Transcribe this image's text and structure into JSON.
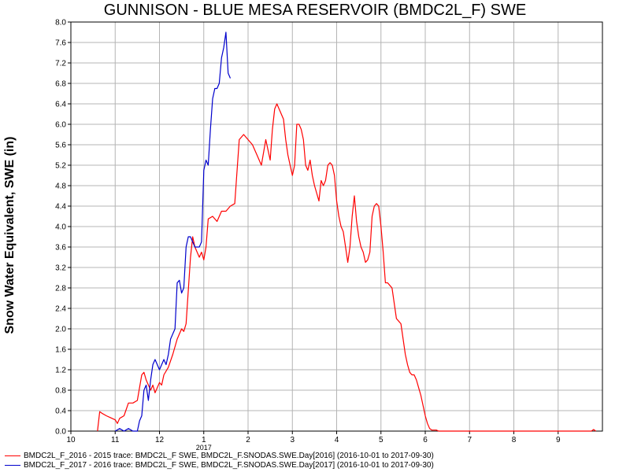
{
  "chart_data": {
    "type": "line",
    "title": "GUNNISON - BLUE MESA RESERVOIR (BMDC2L_F) SWE",
    "ylabel": "Snow Water Equivalent, SWE (in)",
    "xlabel": "",
    "ylim": [
      0,
      8
    ],
    "y_ticks": [
      "0.0",
      "0.4",
      "0.8",
      "1.2",
      "1.6",
      "2.0",
      "2.4",
      "2.8",
      "3.2",
      "3.6",
      "4.0",
      "4.4",
      "4.8",
      "5.2",
      "5.6",
      "6.0",
      "6.4",
      "6.8",
      "7.2",
      "7.6",
      "8.0"
    ],
    "x_ticks": [
      {
        "label": "10",
        "month": 0
      },
      {
        "label": "11",
        "month": 1
      },
      {
        "label": "12",
        "month": 2
      },
      {
        "label": "1",
        "month": 3
      },
      {
        "label": "2",
        "month": 4
      },
      {
        "label": "3",
        "month": 5
      },
      {
        "label": "4",
        "month": 6
      },
      {
        "label": "5",
        "month": 7
      },
      {
        "label": "6",
        "month": 8
      },
      {
        "label": "7",
        "month": 9
      },
      {
        "label": "8",
        "month": 10
      },
      {
        "label": "9",
        "month": 11
      }
    ],
    "year_label": "2017",
    "grid": true,
    "series": [
      {
        "name": "BMDC2L_F_2016 - 2015 trace: BMDC2L_F SWE, BMDC2L_F.SNODAS.SWE.Day[2016] (2016-10-01 to 2017-09-30)",
        "color": "#ff0000",
        "x": [
          0.6,
          0.65,
          0.7,
          0.8,
          0.9,
          1.0,
          1.05,
          1.1,
          1.2,
          1.3,
          1.4,
          1.5,
          1.6,
          1.65,
          1.7,
          1.8,
          1.85,
          1.9,
          2.0,
          2.05,
          2.1,
          2.2,
          2.3,
          2.4,
          2.5,
          2.55,
          2.6,
          2.7,
          2.75,
          2.8,
          2.9,
          2.95,
          3.0,
          3.05,
          3.1,
          3.2,
          3.3,
          3.4,
          3.5,
          3.6,
          3.7,
          3.8,
          3.9,
          4.0,
          4.1,
          4.2,
          4.3,
          4.4,
          4.5,
          4.55,
          4.6,
          4.65,
          4.7,
          4.8,
          4.85,
          4.9,
          4.95,
          5.0,
          5.05,
          5.1,
          5.15,
          5.2,
          5.25,
          5.3,
          5.35,
          5.4,
          5.45,
          5.5,
          5.6,
          5.65,
          5.7,
          5.75,
          5.8,
          5.85,
          5.9,
          5.95,
          6.0,
          6.05,
          6.1,
          6.15,
          6.2,
          6.25,
          6.3,
          6.35,
          6.4,
          6.45,
          6.5,
          6.55,
          6.6,
          6.65,
          6.7,
          6.75,
          6.8,
          6.85,
          6.9,
          6.95,
          7.0,
          7.05,
          7.1,
          7.15,
          7.2,
          7.25,
          7.3,
          7.35,
          7.4,
          7.45,
          7.5,
          7.55,
          7.6,
          7.65,
          7.7,
          7.75,
          7.8,
          7.85,
          7.9,
          7.95,
          8.0,
          8.05,
          8.1,
          8.15,
          8.2,
          8.25,
          8.3,
          8.35,
          8.4,
          8.45,
          8.5,
          8.55,
          8.6,
          8.7,
          8.8,
          8.9,
          9.0,
          9.5,
          10.0,
          10.5,
          11.0,
          11.5,
          11.75,
          11.8,
          11.85
        ],
        "y": [
          0.0,
          0.38,
          0.35,
          0.3,
          0.26,
          0.22,
          0.15,
          0.25,
          0.3,
          0.55,
          0.55,
          0.6,
          1.1,
          1.15,
          1.0,
          0.8,
          0.9,
          0.75,
          0.95,
          0.9,
          1.1,
          1.25,
          1.5,
          1.8,
          2.0,
          1.95,
          2.1,
          3.4,
          3.8,
          3.6,
          3.4,
          3.5,
          3.35,
          3.6,
          4.15,
          4.2,
          4.1,
          4.3,
          4.3,
          4.4,
          4.45,
          5.7,
          5.8,
          5.7,
          5.6,
          5.4,
          5.2,
          5.7,
          5.3,
          5.9,
          6.3,
          6.4,
          6.3,
          6.1,
          5.7,
          5.4,
          5.2,
          5.0,
          5.2,
          6.0,
          6.0,
          5.9,
          5.7,
          5.2,
          5.1,
          5.3,
          5.0,
          4.8,
          4.5,
          4.9,
          4.8,
          4.9,
          5.2,
          5.25,
          5.2,
          5.0,
          4.5,
          4.2,
          4.0,
          3.9,
          3.6,
          3.3,
          3.6,
          4.2,
          4.6,
          4.1,
          3.8,
          3.6,
          3.5,
          3.3,
          3.35,
          3.5,
          4.2,
          4.4,
          4.45,
          4.4,
          4.0,
          3.5,
          2.9,
          2.9,
          2.85,
          2.8,
          2.5,
          2.2,
          2.15,
          2.1,
          1.8,
          1.5,
          1.3,
          1.15,
          1.1,
          1.1,
          1.0,
          0.85,
          0.7,
          0.5,
          0.3,
          0.15,
          0.05,
          0.02,
          0.02,
          0.02,
          0.0,
          0.0,
          0.0,
          0.0,
          0.0,
          0.0,
          0.0,
          0.0,
          0.0,
          0.0,
          0.0,
          0.0,
          0.0,
          0.0,
          0.0,
          0.0,
          0.0,
          0.03,
          0.0
        ],
        "note": ""
      },
      {
        "name": "BMDC2L_F_2017 - 2016 trace: BMDC2L_F SWE, BMDC2L_F.SNODAS.SWE.Day[2017] (2016-10-01 to 2017-09-30)",
        "color": "#0000cc",
        "x": [
          1.0,
          1.1,
          1.2,
          1.3,
          1.4,
          1.5,
          1.55,
          1.6,
          1.65,
          1.7,
          1.75,
          1.8,
          1.85,
          1.9,
          1.95,
          2.0,
          2.05,
          2.1,
          2.15,
          2.2,
          2.25,
          2.3,
          2.35,
          2.4,
          2.45,
          2.5,
          2.55,
          2.6,
          2.65,
          2.7,
          2.75,
          2.8,
          2.85,
          2.9,
          2.95,
          3.0,
          3.05,
          3.1,
          3.15,
          3.2,
          3.25,
          3.3,
          3.35,
          3.4,
          3.45,
          3.5,
          3.55,
          3.6
        ],
        "y": [
          0.0,
          0.05,
          0.0,
          0.05,
          0.0,
          0.0,
          0.2,
          0.3,
          0.8,
          0.9,
          0.6,
          1.0,
          1.3,
          1.4,
          1.3,
          1.2,
          1.3,
          1.4,
          1.3,
          1.5,
          1.8,
          1.9,
          2.0,
          2.9,
          2.95,
          2.7,
          2.8,
          3.6,
          3.8,
          3.8,
          3.7,
          3.6,
          3.6,
          3.6,
          3.7,
          5.1,
          5.3,
          5.2,
          5.9,
          6.5,
          6.7,
          6.7,
          6.8,
          7.3,
          7.5,
          7.8,
          7.0,
          6.9
        ]
      }
    ]
  }
}
